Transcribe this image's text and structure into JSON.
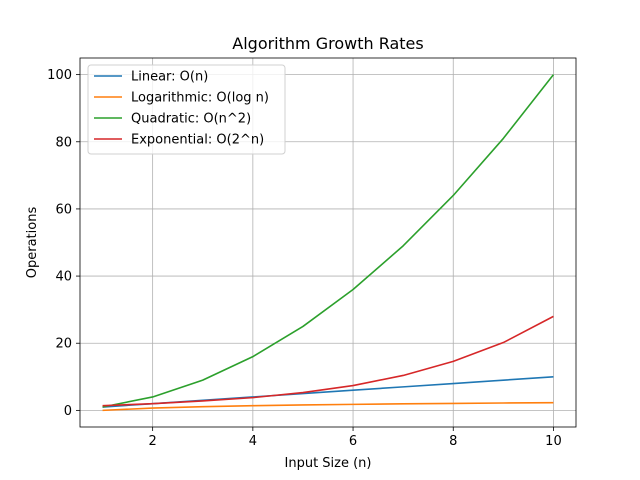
{
  "chart_data": {
    "type": "line",
    "title": "Algorithm Growth Rates",
    "xlabel": "Input Size (n)",
    "ylabel": "Operations",
    "xlim": [
      0.55,
      10.45
    ],
    "ylim": [
      -4.95,
      104.95
    ],
    "xticks": [
      2,
      4,
      6,
      8,
      10
    ],
    "yticks": [
      0,
      20,
      40,
      60,
      80,
      100
    ],
    "grid": true,
    "legend_position": "top-left",
    "x": [
      1,
      2,
      3,
      4,
      5,
      6,
      7,
      8,
      9,
      10
    ],
    "series": [
      {
        "name": "Linear: O(n)",
        "color": "#1f77b4",
        "values": [
          1,
          2,
          3,
          4,
          5,
          6,
          7,
          8,
          9,
          10
        ]
      },
      {
        "name": "Logarithmic: O(log n)",
        "color": "#ff7f0e",
        "values": [
          0,
          0.69,
          1.1,
          1.39,
          1.61,
          1.79,
          1.95,
          2.08,
          2.2,
          2.3
        ]
      },
      {
        "name": "Quadratic: O(n^2)",
        "color": "#2ca02c",
        "values": [
          1,
          4,
          9,
          16,
          25,
          36,
          49,
          64,
          81,
          100
        ]
      },
      {
        "name": "Exponential: O(2^n)",
        "color": "#d62728",
        "values": [
          1.4,
          2.0,
          2.8,
          3.8,
          5.3,
          7.4,
          10.4,
          14.6,
          20.2,
          28.0
        ]
      }
    ]
  }
}
